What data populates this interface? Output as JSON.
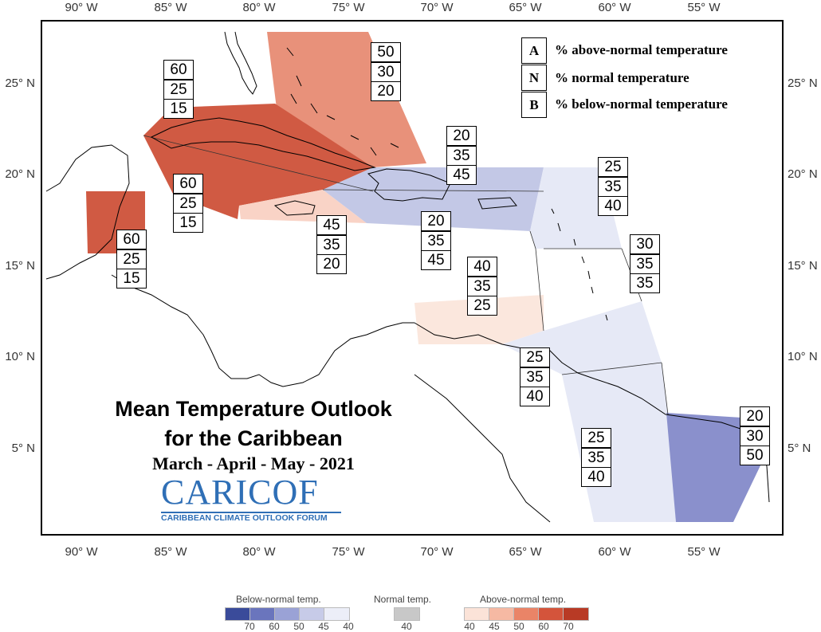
{
  "map": {
    "title_line1": "Mean Temperature Outlook",
    "title_line2": "for the Caribbean",
    "period": "March - April - May - 2021",
    "lon_labels": [
      "90° W",
      "85° W",
      "80° W",
      "75° W",
      "70° W",
      "65° W",
      "60° W",
      "55° W"
    ],
    "lat_labels": [
      "25° N",
      "20° N",
      "15° N",
      "10° N",
      "5° N"
    ]
  },
  "legend": {
    "rows": [
      {
        "letter": "A",
        "text": "% above-normal temperature"
      },
      {
        "letter": "N",
        "text": "% normal temperature"
      },
      {
        "letter": "B",
        "text": "% below-normal temperature"
      }
    ]
  },
  "logo": {
    "name": "CARICOF",
    "tagline": "CARIBBEAN CLIMATE OUTLOOK FORUM"
  },
  "regions": [
    {
      "id": "bahamas",
      "A": "50",
      "N": "30",
      "B": "20",
      "color": "#e8917a"
    },
    {
      "id": "cuba-west",
      "A": "60",
      "N": "25",
      "B": "15",
      "color": "#d05a43"
    },
    {
      "id": "cuba-east",
      "A": "60",
      "N": "25",
      "B": "15",
      "color": "#d05a43"
    },
    {
      "id": "belize",
      "A": "60",
      "N": "25",
      "B": "15",
      "color": "#d05a43"
    },
    {
      "id": "jamaica",
      "A": "45",
      "N": "35",
      "B": "20",
      "color": "#f9d3c6"
    },
    {
      "id": "greater-antilles-north",
      "A": "20",
      "N": "35",
      "B": "45",
      "color": "#c3c8e6"
    },
    {
      "id": "greater-antilles-south",
      "A": "20",
      "N": "35",
      "B": "45",
      "color": "#c3c8e6"
    },
    {
      "id": "leeward-islands",
      "A": "25",
      "N": "35",
      "B": "40",
      "color": "#e6e9f6"
    },
    {
      "id": "windward-islands",
      "A": "30",
      "N": "35",
      "B": "35",
      "color": "#ffffff"
    },
    {
      "id": "abc-islands",
      "A": "40",
      "N": "35",
      "B": "25",
      "color": "#fbe7dd"
    },
    {
      "id": "trinidad",
      "A": "25",
      "N": "35",
      "B": "40",
      "color": "#e6e9f6"
    },
    {
      "id": "guyana",
      "A": "25",
      "N": "35",
      "B": "40",
      "color": "#e6e9f6"
    },
    {
      "id": "suriname",
      "A": "20",
      "N": "30",
      "B": "50",
      "color": "#8a90cc"
    }
  ],
  "colorbar": {
    "below_label": "Below-normal temp.",
    "normal_label": "Normal temp.",
    "above_label": "Above-normal temp.",
    "below_ticks": [
      "70",
      "60",
      "50",
      "45",
      "40"
    ],
    "normal_ticks": [
      "40"
    ],
    "above_ticks": [
      "40",
      "45",
      "50",
      "60",
      "70"
    ],
    "below_colors": [
      "#3a4b9a",
      "#6a75bd",
      "#9aa2d6",
      "#c7cbe8",
      "#eceef8"
    ],
    "normal_color": "#c8c8c8",
    "above_colors": [
      "#fbe3d8",
      "#f6b9a3",
      "#ea8467",
      "#d4543b",
      "#b83a25"
    ]
  }
}
